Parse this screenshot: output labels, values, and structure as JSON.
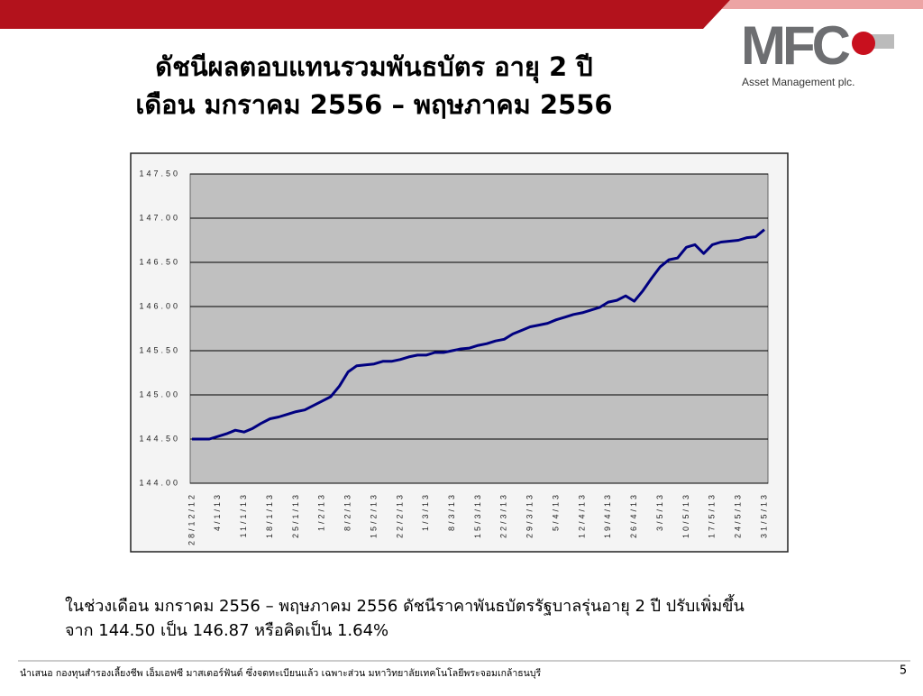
{
  "slide": {
    "title": [
      "ดัชนีผลตอบแทนรวมพันธบัตร อายุ 2 ปี",
      "เดือน มกราคม 2556 – พฤษภาคม 2556"
    ],
    "logo": "MFC",
    "logo_subtitle": "Asset Management plc."
  },
  "chart_data": {
    "type": "line",
    "categories": [
      "28/12/12",
      null,
      null,
      "4/1/13",
      null,
      null,
      "11/1/13",
      null,
      null,
      "18/1/13",
      null,
      null,
      "25/1/13",
      null,
      null,
      "1/2/13",
      null,
      null,
      "8/2/13",
      null,
      null,
      "15/2/13",
      null,
      null,
      "22/2/13",
      null,
      null,
      "1/3/13",
      null,
      null,
      "8/3/13",
      null,
      null,
      "15/3/13",
      null,
      null,
      "22/3/13",
      null,
      null,
      "29/3/13",
      null,
      null,
      "5/4/13",
      null,
      null,
      "12/4/13",
      null,
      null,
      "19/4/13",
      null,
      null,
      "26/4/13",
      null,
      null,
      "3/5/13",
      null,
      null,
      "10/5/13",
      null,
      null,
      "17/5/13",
      null,
      null,
      "24/5/13",
      null,
      null,
      "31/5/13"
    ],
    "values": [
      144.5,
      144.5,
      144.5,
      144.53,
      144.56,
      144.6,
      144.58,
      144.62,
      144.68,
      144.73,
      144.75,
      144.78,
      144.81,
      144.83,
      144.88,
      144.93,
      144.98,
      145.1,
      145.26,
      145.33,
      145.34,
      145.35,
      145.38,
      145.38,
      145.4,
      145.43,
      145.45,
      145.45,
      145.48,
      145.48,
      145.5,
      145.52,
      145.53,
      145.56,
      145.58,
      145.61,
      145.63,
      145.69,
      145.73,
      145.77,
      145.79,
      145.81,
      145.85,
      145.88,
      145.91,
      145.93,
      145.96,
      145.99,
      146.05,
      146.07,
      146.12,
      146.06,
      146.18,
      146.32,
      146.45,
      146.53,
      146.55,
      146.67,
      146.7,
      146.6,
      146.7,
      146.73,
      146.74,
      146.75,
      146.78,
      146.79,
      146.87
    ],
    "color": "#000080",
    "ylim": [
      144,
      147.5
    ],
    "yticks": [
      {
        "value": 144,
        "label": "144.00"
      },
      {
        "value": 144.5,
        "label": "144.50"
      },
      {
        "value": 145,
        "label": "145.00"
      },
      {
        "value": 145.5,
        "label": "145.50"
      },
      {
        "value": 146,
        "label": "146.00"
      },
      {
        "value": 146.5,
        "label": "146.50"
      },
      {
        "value": 147,
        "label": "147.00"
      },
      {
        "value": 147.5,
        "label": "147.50"
      }
    ],
    "grid": true
  },
  "summary": [
    "ในช่วงเดือน มกราคม 2556 – พฤษภาคม 2556  ดัชนีราคาพันธบัตรรัฐบาลรุ่นอายุ 2 ปี ปรับเพิ่มขึ้น",
    "จาก 144.50 เป็น 146.87 หรือคิดเป็น 1.64%"
  ],
  "footer": {
    "note": "นำเสนอ กองทุนสำรองเลี้ยงชีพ เอ็มเอฟซี มาสเตอร์ฟันด์ ซึ่งจดทะเบียนแล้ว เฉพาะส่วน มหาวิทยาลัยเทคโนโลยีพระจอมเกล้าธนบุรี",
    "page": 5
  }
}
